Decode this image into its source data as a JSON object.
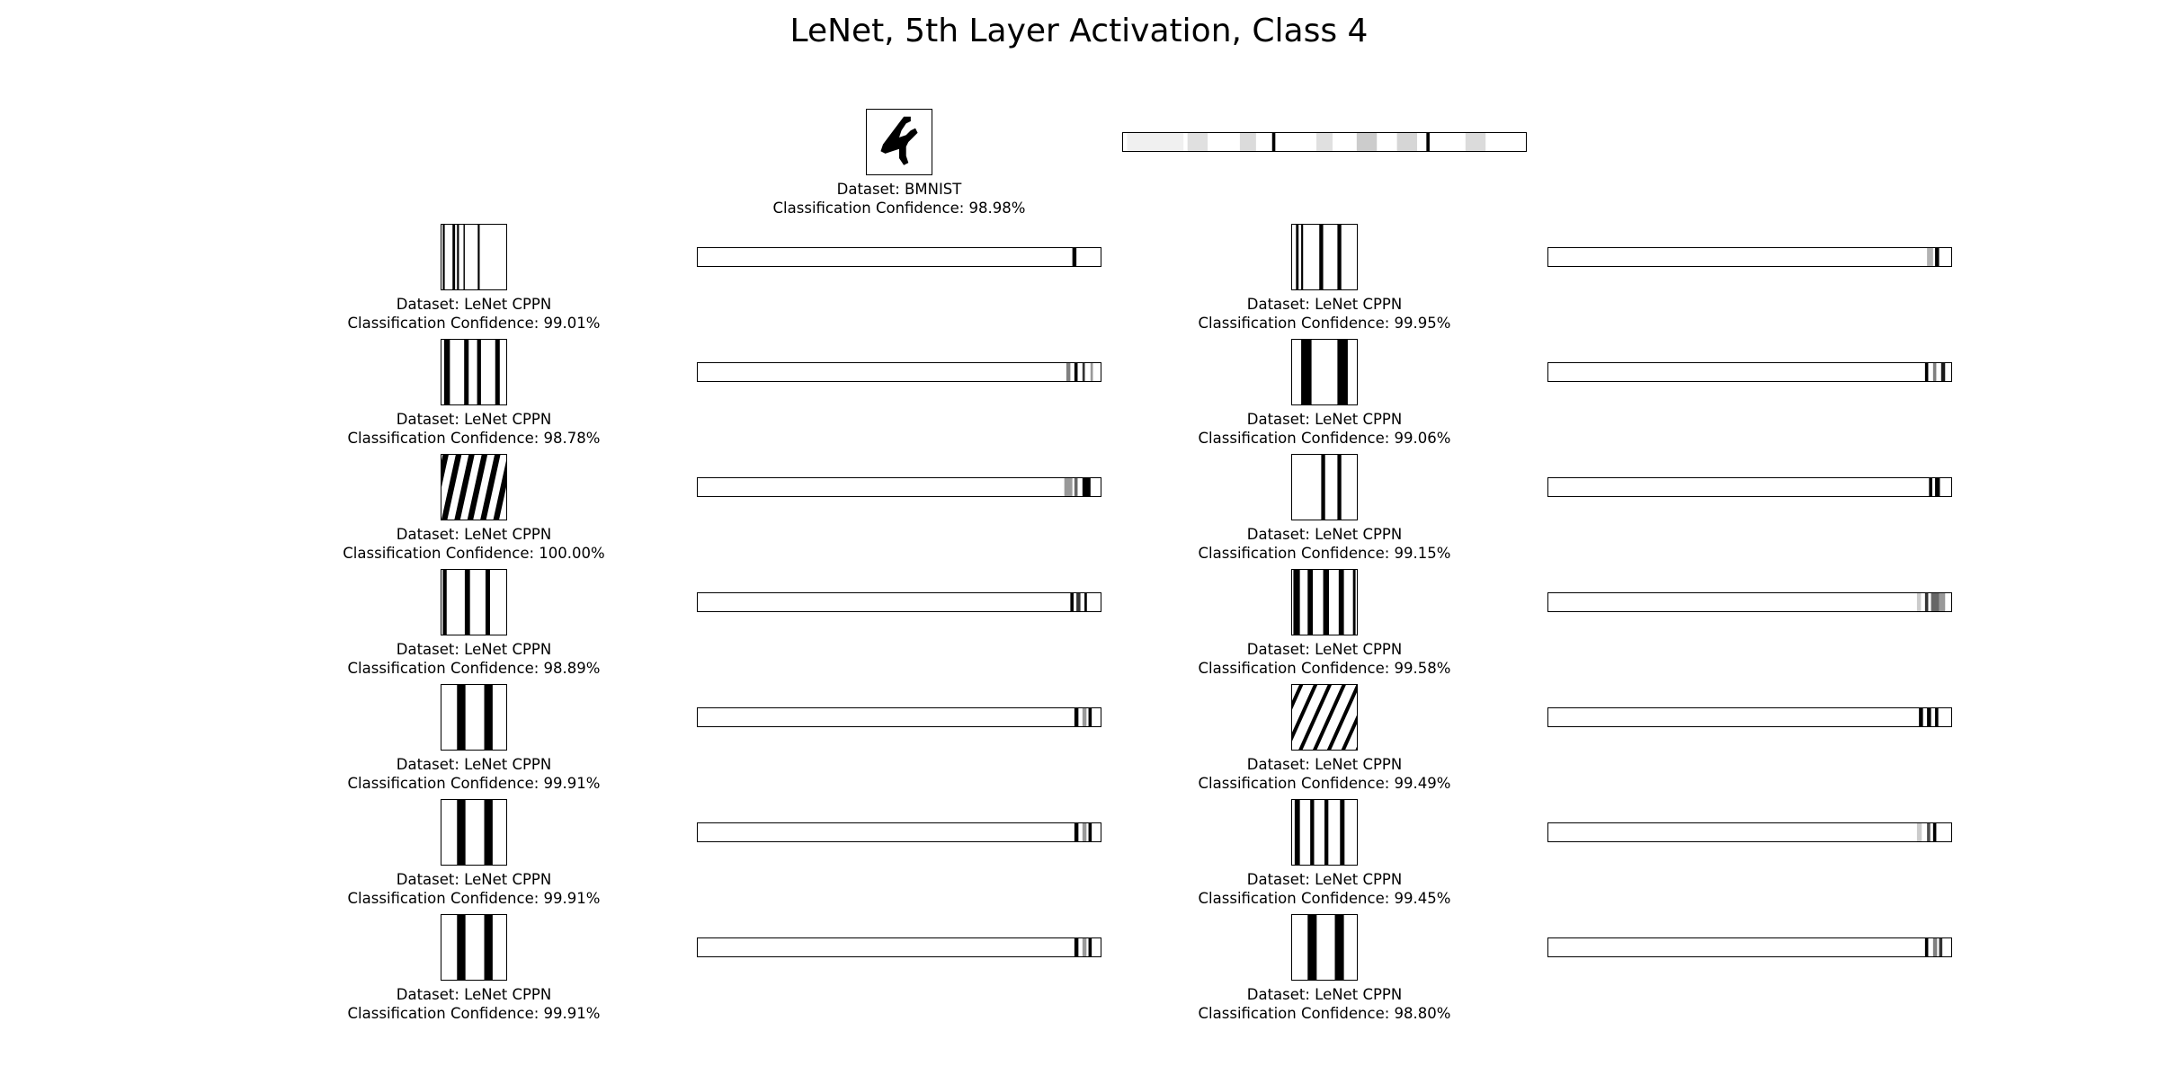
{
  "chart_data": {
    "type": "image-grid",
    "title": "LeNet, 5th Layer Activation, Class 4",
    "reference": {
      "dataset_label": "Dataset: BMNIST",
      "confidence_label": "Classification Confidence: 98.98%",
      "confidence": 98.98,
      "thumbnail": "handwritten-digit-4",
      "activation_stripes": [
        {
          "pos": 0.01,
          "w": 0.14,
          "gray": 0.94
        },
        {
          "pos": 0.16,
          "w": 0.05,
          "gray": 0.88
        },
        {
          "pos": 0.29,
          "w": 0.04,
          "gray": 0.86
        },
        {
          "pos": 0.37,
          "w": 0.008,
          "gray": 0.0
        },
        {
          "pos": 0.48,
          "w": 0.04,
          "gray": 0.88
        },
        {
          "pos": 0.58,
          "w": 0.05,
          "gray": 0.8
        },
        {
          "pos": 0.68,
          "w": 0.05,
          "gray": 0.84
        },
        {
          "pos": 0.753,
          "w": 0.008,
          "gray": 0.0
        },
        {
          "pos": 0.85,
          "w": 0.05,
          "gray": 0.86
        }
      ]
    },
    "items": [
      {
        "dataset_label": "Dataset: LeNet CPPN",
        "confidence_label": "Classification Confidence: 99.01%",
        "confidence": 99.01,
        "pattern": {
          "kind": "stripes",
          "bars": [
            [
              0.02,
              0.03
            ],
            [
              0.17,
              0.04
            ],
            [
              0.24,
              0.03
            ],
            [
              0.34,
              0.02
            ],
            [
              0.56,
              0.03
            ]
          ]
        },
        "activation_stripes": [
          {
            "pos": 0.93,
            "w": 0.01,
            "gray": 0.0
          }
        ]
      },
      {
        "dataset_label": "Dataset: LeNet CPPN",
        "confidence_label": "Classification Confidence: 99.95%",
        "confidence": 99.95,
        "pattern": {
          "kind": "stripes",
          "bars": [
            [
              0.06,
              0.04
            ],
            [
              0.14,
              0.03
            ],
            [
              0.42,
              0.06
            ],
            [
              0.7,
              0.06
            ]
          ]
        },
        "activation_stripes": [
          {
            "pos": 0.94,
            "w": 0.015,
            "gray": 0.7
          },
          {
            "pos": 0.96,
            "w": 0.01,
            "gray": 0.0
          }
        ]
      },
      {
        "dataset_label": "Dataset: LeNet CPPN",
        "confidence_label": "Classification Confidence: 98.78%",
        "confidence": 98.78,
        "pattern": {
          "kind": "stripes",
          "bars": [
            [
              0.04,
              0.09
            ],
            [
              0.35,
              0.07
            ],
            [
              0.55,
              0.06
            ],
            [
              0.83,
              0.07
            ]
          ]
        },
        "activation_stripes": [
          {
            "pos": 0.915,
            "w": 0.01,
            "gray": 0.5
          },
          {
            "pos": 0.935,
            "w": 0.008,
            "gray": 0.0
          },
          {
            "pos": 0.955,
            "w": 0.006,
            "gray": 0.2
          },
          {
            "pos": 0.975,
            "w": 0.006,
            "gray": 0.6
          }
        ]
      },
      {
        "dataset_label": "Dataset: LeNet CPPN",
        "confidence_label": "Classification Confidence: 99.06%",
        "confidence": 99.06,
        "pattern": {
          "kind": "stripes",
          "bars": [
            [
              0.14,
              0.16
            ],
            [
              0.7,
              0.16
            ]
          ]
        },
        "activation_stripes": [
          {
            "pos": 0.935,
            "w": 0.008,
            "gray": 0.0
          },
          {
            "pos": 0.955,
            "w": 0.008,
            "gray": 0.5
          },
          {
            "pos": 0.975,
            "w": 0.01,
            "gray": 0.1
          }
        ]
      },
      {
        "dataset_label": "Dataset: LeNet CPPN",
        "confidence_label": "Classification Confidence: 100.00%",
        "confidence": 100.0,
        "pattern": {
          "kind": "diagonal",
          "period": 0.2,
          "duty": 0.45,
          "slant": 0.22
        },
        "activation_stripes": [
          {
            "pos": 0.91,
            "w": 0.02,
            "gray": 0.6
          },
          {
            "pos": 0.935,
            "w": 0.008,
            "gray": 0.4
          },
          {
            "pos": 0.955,
            "w": 0.02,
            "gray": 0.0
          }
        ]
      },
      {
        "dataset_label": "Dataset: LeNet CPPN",
        "confidence_label": "Classification Confidence: 99.15%",
        "confidence": 99.15,
        "pattern": {
          "kind": "stripes",
          "bars": [
            [
              0.45,
              0.06
            ],
            [
              0.7,
              0.06
            ]
          ]
        },
        "activation_stripes": [
          {
            "pos": 0.945,
            "w": 0.008,
            "gray": 0.0
          },
          {
            "pos": 0.96,
            "w": 0.012,
            "gray": 0.0
          }
        ]
      },
      {
        "dataset_label": "Dataset: LeNet CPPN",
        "confidence_label": "Classification Confidence: 98.89%",
        "confidence": 98.89,
        "pattern": {
          "kind": "stripes",
          "bars": [
            [
              0.02,
              0.06
            ],
            [
              0.36,
              0.08
            ],
            [
              0.68,
              0.07
            ]
          ]
        },
        "activation_stripes": [
          {
            "pos": 0.925,
            "w": 0.008,
            "gray": 0.0
          },
          {
            "pos": 0.94,
            "w": 0.01,
            "gray": 0.2
          },
          {
            "pos": 0.96,
            "w": 0.006,
            "gray": 0.0
          }
        ]
      },
      {
        "dataset_label": "Dataset: LeNet CPPN",
        "confidence_label": "Classification Confidence: 99.58%",
        "confidence": 99.58,
        "pattern": {
          "kind": "stripes",
          "bars": [
            [
              0.02,
              0.1
            ],
            [
              0.24,
              0.08
            ],
            [
              0.48,
              0.09
            ],
            [
              0.72,
              0.08
            ],
            [
              0.94,
              0.04
            ]
          ]
        },
        "activation_stripes": [
          {
            "pos": 0.915,
            "w": 0.01,
            "gray": 0.8
          },
          {
            "pos": 0.935,
            "w": 0.008,
            "gray": 0.2
          },
          {
            "pos": 0.95,
            "w": 0.02,
            "gray": 0.4
          },
          {
            "pos": 0.97,
            "w": 0.015,
            "gray": 0.6
          }
        ]
      },
      {
        "dataset_label": "Dataset: LeNet CPPN",
        "confidence_label": "Classification Confidence: 99.91%",
        "confidence": 99.91,
        "pattern": {
          "kind": "stripes",
          "bars": [
            [
              0.24,
              0.13
            ],
            [
              0.66,
              0.13
            ]
          ]
        },
        "activation_stripes": [
          {
            "pos": 0.935,
            "w": 0.01,
            "gray": 0.0
          },
          {
            "pos": 0.955,
            "w": 0.01,
            "gray": 0.6
          },
          {
            "pos": 0.97,
            "w": 0.008,
            "gray": 0.0
          }
        ]
      },
      {
        "dataset_label": "Dataset: LeNet CPPN",
        "confidence_label": "Classification Confidence: 99.49%",
        "confidence": 99.49,
        "pattern": {
          "kind": "diagonal",
          "period": 0.22,
          "duty": 0.28,
          "slant": 0.45
        },
        "activation_stripes": [
          {
            "pos": 0.92,
            "w": 0.01,
            "gray": 0.0
          },
          {
            "pos": 0.94,
            "w": 0.01,
            "gray": 0.0
          },
          {
            "pos": 0.96,
            "w": 0.008,
            "gray": 0.0
          }
        ]
      },
      {
        "dataset_label": "Dataset: LeNet CPPN",
        "confidence_label": "Classification Confidence: 99.91%",
        "confidence": 99.91,
        "pattern": {
          "kind": "stripes",
          "bars": [
            [
              0.24,
              0.13
            ],
            [
              0.66,
              0.13
            ]
          ]
        },
        "activation_stripes": [
          {
            "pos": 0.935,
            "w": 0.01,
            "gray": 0.0
          },
          {
            "pos": 0.955,
            "w": 0.01,
            "gray": 0.6
          },
          {
            "pos": 0.97,
            "w": 0.008,
            "gray": 0.0
          }
        ]
      },
      {
        "dataset_label": "Dataset: LeNet CPPN",
        "confidence_label": "Classification Confidence: 99.45%",
        "confidence": 99.45,
        "pattern": {
          "kind": "stripes",
          "bars": [
            [
              0.04,
              0.08
            ],
            [
              0.28,
              0.06
            ],
            [
              0.5,
              0.06
            ],
            [
              0.74,
              0.07
            ]
          ]
        },
        "activation_stripes": [
          {
            "pos": 0.915,
            "w": 0.012,
            "gray": 0.8
          },
          {
            "pos": 0.94,
            "w": 0.008,
            "gray": 0.3
          },
          {
            "pos": 0.955,
            "w": 0.008,
            "gray": 0.0
          }
        ]
      },
      {
        "dataset_label": "Dataset: LeNet CPPN",
        "confidence_label": "Classification Confidence: 99.91%",
        "confidence": 99.91,
        "pattern": {
          "kind": "stripes",
          "bars": [
            [
              0.24,
              0.13
            ],
            [
              0.66,
              0.13
            ]
          ]
        },
        "activation_stripes": [
          {
            "pos": 0.935,
            "w": 0.01,
            "gray": 0.0
          },
          {
            "pos": 0.955,
            "w": 0.01,
            "gray": 0.6
          },
          {
            "pos": 0.97,
            "w": 0.008,
            "gray": 0.0
          }
        ]
      },
      {
        "dataset_label": "Dataset: LeNet CPPN",
        "confidence_label": "Classification Confidence: 98.80%",
        "confidence": 98.8,
        "pattern": {
          "kind": "stripes",
          "bars": [
            [
              0.24,
              0.14
            ],
            [
              0.66,
              0.14
            ]
          ]
        },
        "activation_stripes": [
          {
            "pos": 0.935,
            "w": 0.008,
            "gray": 0.0
          },
          {
            "pos": 0.955,
            "w": 0.01,
            "gray": 0.5
          },
          {
            "pos": 0.97,
            "w": 0.008,
            "gray": 0.2
          }
        ]
      }
    ]
  }
}
